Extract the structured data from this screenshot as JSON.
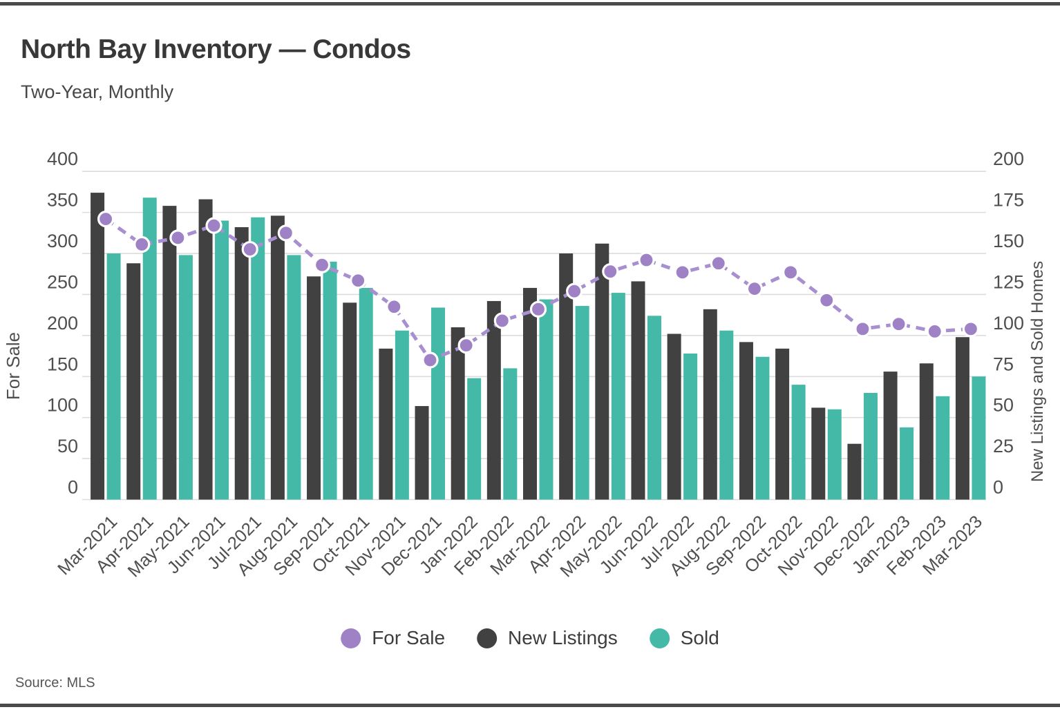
{
  "header": {
    "title": "North Bay Inventory — Condos",
    "subtitle": "Two-Year, Monthly"
  },
  "source": {
    "label": "Source: MLS"
  },
  "legend": [
    {
      "label": "For Sale",
      "color": "#9f81c6"
    },
    {
      "label": "New Listings",
      "color": "#414141"
    },
    {
      "label": "Sold",
      "color": "#44b9a7"
    }
  ],
  "chart_data": {
    "type": "bar+line combo",
    "categories": [
      "Mar-2021",
      "Apr-2021",
      "May-2021",
      "Jun-2021",
      "Jul-2021",
      "Aug-2021",
      "Sep-2021",
      "Oct-2021",
      "Nov-2021",
      "Dec-2021",
      "Jan-2022",
      "Feb-2022",
      "Mar-2022",
      "Apr-2022",
      "May-2022",
      "Jun-2022",
      "Jul-2022",
      "Aug-2022",
      "Sep-2022",
      "Oct-2022",
      "Nov-2022",
      "Dec-2022",
      "Jan-2023",
      "Feb-2023",
      "Mar-2023"
    ],
    "series": [
      {
        "name": "For Sale",
        "type": "line",
        "axis": "left",
        "color": "#9f81c6",
        "line_color": "#a78fd0",
        "values": [
          342,
          311,
          319,
          334,
          305,
          325,
          286,
          267,
          235,
          170,
          188,
          218,
          232,
          254,
          278,
          292,
          277,
          288,
          257,
          277,
          243,
          208,
          214,
          205,
          208
        ]
      },
      {
        "name": "New Listings",
        "type": "bar",
        "axis": "right",
        "color": "#414141",
        "values": [
          187,
          144,
          179,
          183,
          166,
          173,
          136,
          120,
          92,
          57,
          105,
          121,
          129,
          150,
          156,
          133,
          101,
          116,
          96,
          92,
          56,
          34,
          78,
          83,
          99
        ]
      },
      {
        "name": "Sold",
        "type": "bar",
        "axis": "right",
        "color": "#44b9a7",
        "values": [
          150,
          184,
          149,
          170,
          172,
          149,
          145,
          129,
          103,
          117,
          74,
          80,
          122,
          118,
          126,
          112,
          89,
          103,
          87,
          70,
          55,
          65,
          44,
          63,
          75
        ]
      }
    ],
    "left_axis": {
      "title": "For Sale",
      "min": 0,
      "max": 400,
      "step": 50
    },
    "right_axis": {
      "title": "New Listings and Sold Homes",
      "min": 0,
      "max": 200,
      "step": 25
    },
    "grid": true,
    "legend_position": "bottom",
    "line_style": "dashed"
  }
}
